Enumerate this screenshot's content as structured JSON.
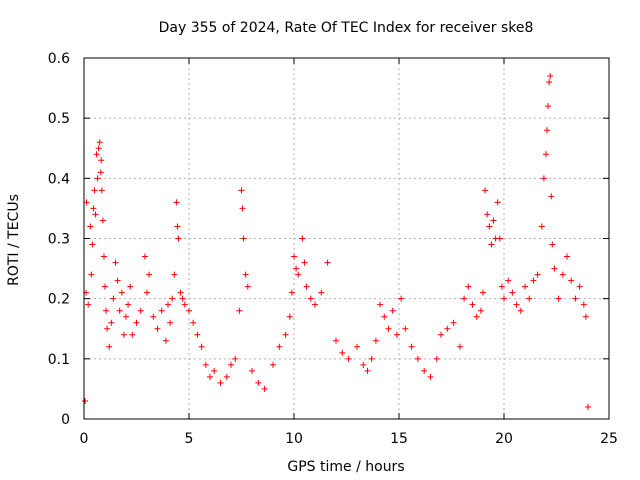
{
  "chart_data": {
    "type": "scatter",
    "title": "Day 355 of 2024, Rate Of TEC Index for receiver ske8",
    "xlabel": "GPS time / hours",
    "ylabel": "ROTI / TECUs",
    "xlim": [
      0,
      25
    ],
    "ylim": [
      0,
      0.6
    ],
    "xticks": [
      0,
      5,
      10,
      15,
      20,
      25
    ],
    "yticks": [
      0,
      0.1,
      0.2,
      0.3,
      0.4,
      0.5,
      0.6
    ],
    "xtick_labels": [
      "0",
      "5",
      "10",
      "15",
      "20",
      "25"
    ],
    "ytick_labels": [
      "0",
      "0.1",
      "0.2",
      "0.3",
      "0.4",
      "0.5",
      "0.6"
    ],
    "grid": true,
    "marker": "+",
    "series": [
      {
        "name": "ROTI",
        "color": "#ff0000",
        "x": [
          0.05,
          0.1,
          0.12,
          0.2,
          0.3,
          0.35,
          0.4,
          0.45,
          0.5,
          0.55,
          0.6,
          0.65,
          0.7,
          0.75,
          0.8,
          0.82,
          0.85,
          0.9,
          0.95,
          1.0,
          1.05,
          1.1,
          1.2,
          1.3,
          1.4,
          1.5,
          1.6,
          1.7,
          1.8,
          1.9,
          2.0,
          2.1,
          2.2,
          2.3,
          2.5,
          2.7,
          2.9,
          3.0,
          3.1,
          3.3,
          3.5,
          3.7,
          3.9,
          4.0,
          4.1,
          4.2,
          4.3,
          4.4,
          4.45,
          4.5,
          4.6,
          4.7,
          4.8,
          5.0,
          5.2,
          5.4,
          5.6,
          5.8,
          6.0,
          6.2,
          6.5,
          6.8,
          7.0,
          7.2,
          7.4,
          7.5,
          7.55,
          7.6,
          7.7,
          7.8,
          8.0,
          8.3,
          8.6,
          9.0,
          9.3,
          9.6,
          9.8,
          9.9,
          10.0,
          10.1,
          10.2,
          10.4,
          10.5,
          10.6,
          10.8,
          11.0,
          11.3,
          11.6,
          12.0,
          12.3,
          12.6,
          13.0,
          13.3,
          13.5,
          13.7,
          13.9,
          14.1,
          14.3,
          14.5,
          14.7,
          14.9,
          15.1,
          15.3,
          15.6,
          15.9,
          16.2,
          16.5,
          16.8,
          17.0,
          17.3,
          17.6,
          17.9,
          18.1,
          18.3,
          18.5,
          18.7,
          18.9,
          19.0,
          19.1,
          19.2,
          19.3,
          19.4,
          19.5,
          19.6,
          19.7,
          19.8,
          19.9,
          20.0,
          20.2,
          20.4,
          20.6,
          20.8,
          21.0,
          21.2,
          21.4,
          21.6,
          21.8,
          21.9,
          22.0,
          22.05,
          22.1,
          22.15,
          22.2,
          22.25,
          22.3,
          22.4,
          22.6,
          22.8,
          23.0,
          23.2,
          23.4,
          23.6,
          23.8,
          23.9,
          24.0
        ],
        "y": [
          0.03,
          0.21,
          0.36,
          0.19,
          0.32,
          0.24,
          0.29,
          0.35,
          0.38,
          0.34,
          0.44,
          0.4,
          0.45,
          0.46,
          0.41,
          0.43,
          0.38,
          0.33,
          0.27,
          0.22,
          0.18,
          0.15,
          0.12,
          0.16,
          0.2,
          0.26,
          0.23,
          0.18,
          0.21,
          0.14,
          0.17,
          0.19,
          0.22,
          0.14,
          0.16,
          0.18,
          0.27,
          0.21,
          0.24,
          0.17,
          0.15,
          0.18,
          0.13,
          0.19,
          0.16,
          0.2,
          0.24,
          0.36,
          0.32,
          0.3,
          0.21,
          0.2,
          0.19,
          0.18,
          0.16,
          0.14,
          0.12,
          0.09,
          0.07,
          0.08,
          0.06,
          0.07,
          0.09,
          0.1,
          0.18,
          0.38,
          0.35,
          0.3,
          0.24,
          0.22,
          0.08,
          0.06,
          0.05,
          0.09,
          0.12,
          0.14,
          0.17,
          0.21,
          0.27,
          0.25,
          0.24,
          0.3,
          0.26,
          0.22,
          0.2,
          0.19,
          0.21,
          0.26,
          0.13,
          0.11,
          0.1,
          0.12,
          0.09,
          0.08,
          0.1,
          0.13,
          0.19,
          0.17,
          0.15,
          0.18,
          0.14,
          0.2,
          0.15,
          0.12,
          0.1,
          0.08,
          0.07,
          0.1,
          0.14,
          0.15,
          0.16,
          0.12,
          0.2,
          0.22,
          0.19,
          0.17,
          0.18,
          0.21,
          0.38,
          0.34,
          0.32,
          0.29,
          0.33,
          0.3,
          0.36,
          0.3,
          0.22,
          0.2,
          0.23,
          0.21,
          0.19,
          0.18,
          0.22,
          0.2,
          0.23,
          0.24,
          0.32,
          0.4,
          0.44,
          0.48,
          0.52,
          0.56,
          0.57,
          0.37,
          0.29,
          0.25,
          0.2,
          0.24,
          0.27,
          0.23,
          0.2,
          0.22,
          0.19,
          0.17,
          0.02
        ]
      }
    ]
  }
}
